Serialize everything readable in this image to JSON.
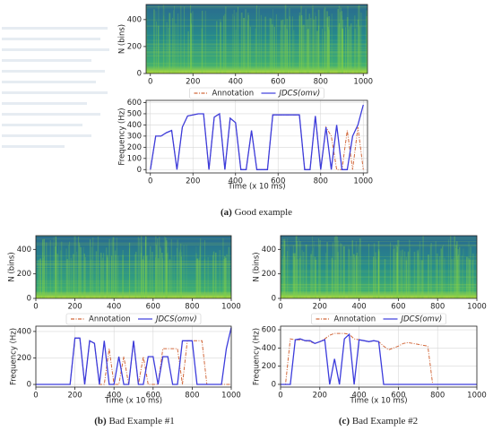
{
  "chart_data": [
    {
      "type": "heatmap",
      "ylabel": "N (bins)",
      "xlim": [
        -20,
        1020
      ],
      "ylim": [
        0,
        512
      ],
      "xticks": [
        0,
        200,
        400,
        600,
        800,
        1000
      ],
      "yticks": [
        0,
        200,
        400
      ]
    },
    {
      "type": "line",
      "xlabel": "Time (x 10 ms)",
      "ylabel": "Frequency (Hz)",
      "xlim": [
        -20,
        1020
      ],
      "ylim": [
        -30,
        620
      ],
      "xticks": [
        0,
        200,
        400,
        600,
        800,
        1000
      ],
      "yticks": [
        0,
        100,
        200,
        300,
        400,
        500,
        600
      ],
      "grid": true,
      "x": [
        0,
        25,
        50,
        75,
        100,
        125,
        150,
        175,
        200,
        225,
        250,
        275,
        300,
        325,
        350,
        375,
        400,
        425,
        450,
        475,
        500,
        525,
        550,
        575,
        600,
        625,
        650,
        675,
        700,
        725,
        750,
        775,
        800,
        825,
        850,
        875,
        900,
        925,
        950,
        975,
        1000
      ],
      "series": [
        {
          "name": "Annotation",
          "color": "#d2693c",
          "dash": true,
          "values": [
            0,
            300,
            300,
            330,
            350,
            0,
            380,
            480,
            490,
            500,
            500,
            0,
            470,
            500,
            0,
            460,
            420,
            0,
            0,
            350,
            0,
            0,
            0,
            490,
            490,
            490,
            490,
            490,
            490,
            0,
            0,
            480,
            0,
            380,
            300,
            0,
            0,
            350,
            0,
            380,
            0
          ]
        },
        {
          "name": "JDCS(omv)",
          "color": "#3c3cdc",
          "dash": false,
          "values": [
            0,
            300,
            300,
            330,
            350,
            0,
            380,
            480,
            490,
            500,
            500,
            0,
            470,
            500,
            0,
            460,
            420,
            0,
            0,
            350,
            0,
            0,
            0,
            490,
            490,
            490,
            490,
            490,
            490,
            0,
            0,
            480,
            0,
            380,
            0,
            400,
            0,
            0,
            300,
            400,
            580
          ]
        }
      ]
    },
    {
      "type": "heatmap",
      "ylabel": "N (bins)",
      "xlim": [
        0,
        1000
      ],
      "ylim": [
        0,
        512
      ],
      "xticks": [
        0,
        200,
        400,
        600,
        800,
        1000
      ],
      "yticks": [
        0,
        200,
        400
      ]
    },
    {
      "type": "line",
      "xlabel": "Time (x 10 ms)",
      "ylabel": "Frequency (Hz)",
      "xlim": [
        0,
        1000
      ],
      "ylim": [
        -20,
        440
      ],
      "xticks": [
        0,
        200,
        400,
        600,
        800,
        1000
      ],
      "yticks": [
        0,
        200,
        400
      ],
      "grid": true,
      "x": [
        0,
        25,
        50,
        75,
        100,
        125,
        150,
        175,
        200,
        225,
        250,
        275,
        300,
        325,
        350,
        375,
        400,
        425,
        450,
        475,
        500,
        525,
        550,
        575,
        600,
        625,
        650,
        675,
        700,
        725,
        750,
        775,
        800,
        825,
        850,
        875,
        900,
        925,
        950,
        975,
        1000
      ],
      "series": [
        {
          "name": "Annotation",
          "color": "#d2693c",
          "dash": true,
          "values": [
            0,
            0,
            0,
            0,
            0,
            0,
            0,
            0,
            350,
            350,
            0,
            330,
            310,
            0,
            0,
            270,
            0,
            0,
            210,
            0,
            330,
            0,
            210,
            0,
            0,
            0,
            270,
            270,
            270,
            270,
            0,
            330,
            330,
            330,
            330,
            0,
            0,
            0,
            0,
            0,
            0
          ]
        },
        {
          "name": "JDCS(omv)",
          "color": "#3c3cdc",
          "dash": false,
          "values": [
            0,
            0,
            0,
            0,
            0,
            0,
            0,
            0,
            350,
            350,
            0,
            330,
            310,
            0,
            330,
            0,
            0,
            210,
            0,
            0,
            330,
            0,
            0,
            210,
            210,
            0,
            210,
            210,
            0,
            0,
            330,
            330,
            330,
            0,
            0,
            0,
            0,
            0,
            0,
            270,
            430
          ]
        }
      ]
    },
    {
      "type": "heatmap",
      "ylabel": "N (bins)",
      "xlim": [
        0,
        1000
      ],
      "ylim": [
        0,
        512
      ],
      "xticks": [
        0,
        200,
        400,
        600,
        800,
        1000
      ],
      "yticks": [
        0,
        200,
        400
      ]
    },
    {
      "type": "line",
      "xlabel": "Time (x 10 ms)",
      "ylabel": "Frequency (Hz)",
      "xlim": [
        0,
        1000
      ],
      "ylim": [
        -30,
        640
      ],
      "xticks": [
        0,
        200,
        400,
        600,
        800,
        1000
      ],
      "yticks": [
        0,
        200,
        400,
        600
      ],
      "grid": true,
      "x": [
        0,
        25,
        50,
        75,
        100,
        125,
        150,
        175,
        200,
        225,
        250,
        275,
        300,
        325,
        350,
        375,
        400,
        425,
        450,
        475,
        500,
        525,
        550,
        575,
        600,
        625,
        650,
        675,
        700,
        725,
        750,
        775,
        800,
        825,
        850,
        875,
        900,
        925,
        950,
        975,
        1000
      ],
      "series": [
        {
          "name": "Annotation",
          "color": "#d2693c",
          "dash": true,
          "values": [
            0,
            0,
            500,
            490,
            490,
            480,
            470,
            450,
            470,
            500,
            540,
            560,
            560,
            560,
            550,
            500,
            490,
            480,
            470,
            480,
            470,
            420,
            380,
            400,
            420,
            450,
            460,
            450,
            440,
            430,
            420,
            0,
            0,
            0,
            0,
            0,
            0,
            0,
            0,
            0,
            0
          ]
        },
        {
          "name": "JDCS(omv)",
          "color": "#3c3cdc",
          "dash": false,
          "values": [
            0,
            0,
            0,
            490,
            500,
            480,
            480,
            450,
            470,
            490,
            0,
            280,
            0,
            500,
            550,
            0,
            490,
            480,
            470,
            480,
            470,
            0,
            0,
            0,
            0,
            0,
            0,
            0,
            0,
            0,
            0,
            0,
            0,
            0,
            0,
            0,
            0,
            0,
            0,
            0,
            0
          ]
        }
      ]
    }
  ],
  "captions": [
    {
      "label": "(a)",
      "text": "Good example"
    },
    {
      "label": "(b)",
      "text": "Bad Example #1"
    },
    {
      "label": "(c)",
      "text": "Bad Example #2"
    }
  ]
}
